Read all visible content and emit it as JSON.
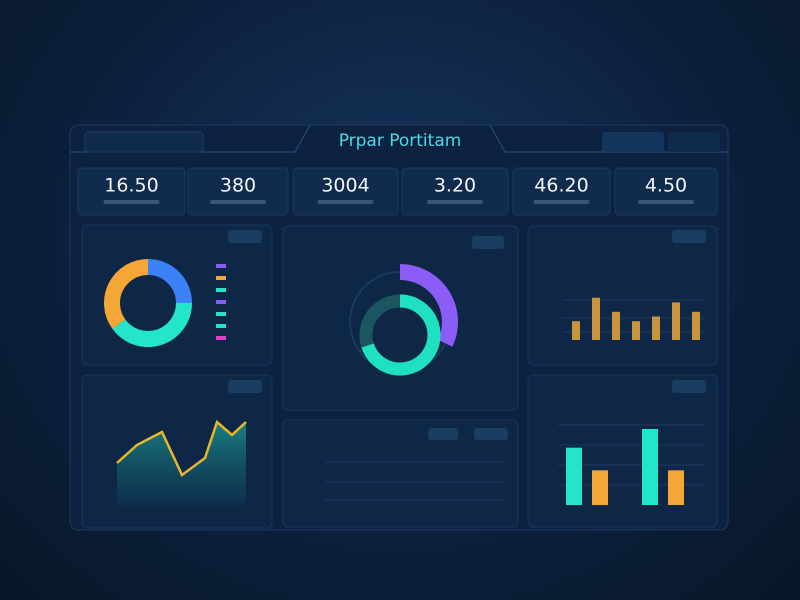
{
  "header": {
    "title": "Prpar Portitam"
  },
  "kpis": [
    "16.50",
    "380",
    "3004",
    "3.20",
    "46.20",
    "4.50"
  ],
  "donut": {
    "values": [
      25,
      40,
      35
    ],
    "colors": [
      "#3b82f6",
      "#22e5c9",
      "#f4a736"
    ]
  },
  "gauge": {
    "outer": 32,
    "inner": 70,
    "outer_color": "#8b5cf6",
    "inner_color": "#1fe0c0"
  },
  "bars": {
    "values": [
      4,
      9,
      6,
      4,
      5,
      8,
      6
    ],
    "color": "#c9953a",
    "ylim": [
      0,
      10
    ]
  },
  "line": {
    "values": [
      4.2,
      6,
      7.3,
      3,
      4.7,
      8.3,
      7,
      8.3
    ],
    "color": "#e8b62c",
    "ylim": [
      0,
      10
    ]
  },
  "pairs": {
    "series": [
      {
        "color": "#22e5c9",
        "values": [
          4.3,
          5.7
        ]
      },
      {
        "color": "#f4a736",
        "values": [
          2.6,
          2.6
        ]
      }
    ],
    "ylim": [
      0,
      6
    ]
  }
}
